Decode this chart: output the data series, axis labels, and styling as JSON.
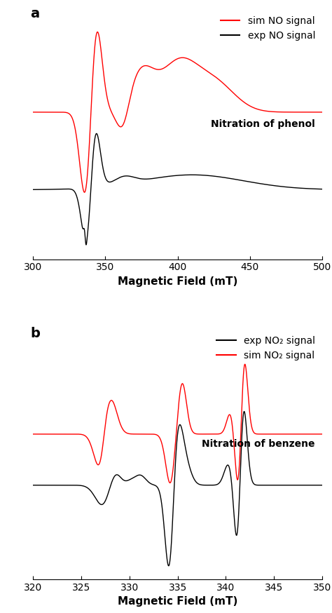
{
  "panel_a": {
    "label": "a",
    "xlim": [
      300,
      500
    ],
    "xlabel": "Magnetic Field (mT)",
    "legend_lines": [
      "sim NO signal",
      "exp NO signal",
      "Nitration of phenol"
    ],
    "legend_colors": [
      "#ff0000",
      "#000000",
      null
    ],
    "red_baseline": 0.28,
    "black_baseline": -0.3
  },
  "panel_b": {
    "label": "b",
    "xlim": [
      320,
      350
    ],
    "xlabel": "Magnetic Field (mT)",
    "legend_lines": [
      "exp NO₂ signal",
      "sim NO₂ signal",
      "Nitration of benzene"
    ],
    "legend_colors": [
      "#000000",
      "#ff0000",
      null
    ],
    "red_baseline": 0.2,
    "black_baseline": -0.18
  },
  "red_color": "#ff0000",
  "black_color": "#000000",
  "background_color": "#ffffff",
  "linewidth_a": 1.0,
  "linewidth_b": 1.0,
  "tick_fontsize": 10,
  "label_fontsize": 11,
  "legend_fontsize": 10
}
